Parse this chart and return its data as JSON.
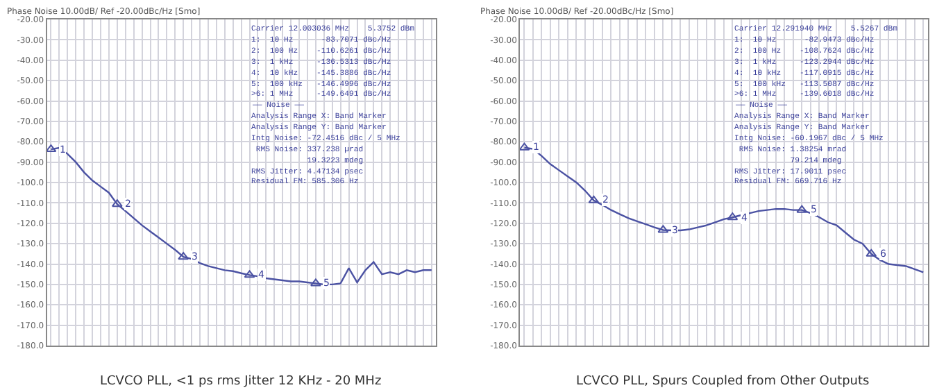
{
  "chart_data": [
    {
      "type": "line",
      "title": "Phase Noise 10.00dB/ Ref -20.00dBc/Hz [Smo]",
      "categories": [
        null,
        null,
        null,
        null,
        null,
        null,
        null,
        null,
        null,
        null,
        null,
        null,
        null,
        null,
        null,
        null,
        null,
        null,
        null,
        null,
        null,
        null,
        null,
        null,
        null,
        null,
        null,
        null,
        null,
        null,
        null,
        null,
        null,
        null,
        null,
        null,
        null,
        null,
        null,
        null,
        null,
        null,
        null,
        null,
        null,
        null,
        null
      ],
      "ylim": [
        -180,
        -20
      ],
      "yticks": [
        {
          "value": -20,
          "label": "-20.00"
        },
        {
          "value": -30,
          "label": "-30.00"
        },
        {
          "value": -40,
          "label": "-40.00"
        },
        {
          "value": -50,
          "label": "-50.00"
        },
        {
          "value": -60,
          "label": "-60.00"
        },
        {
          "value": -70,
          "label": "-70.00"
        },
        {
          "value": -80,
          "label": "-80.00"
        },
        {
          "value": -90,
          "label": "-90.00"
        },
        {
          "value": -100,
          "label": "-100.0"
        },
        {
          "value": -110,
          "label": "-110.0"
        },
        {
          "value": -120,
          "label": "-120.0"
        },
        {
          "value": -130,
          "label": "-130.0"
        },
        {
          "value": -140,
          "label": "-140.0"
        },
        {
          "value": -150,
          "label": "-150.0"
        },
        {
          "value": -160,
          "label": "-160.0"
        },
        {
          "value": -170,
          "label": "-170.0"
        },
        {
          "value": -180,
          "label": "-180.0"
        }
      ],
      "grid": true,
      "series": [
        {
          "color": "#4b52a3",
          "values": [
            -83.7,
            -83,
            -86,
            -90,
            -95,
            -99,
            -102,
            -105,
            -110.6,
            -114,
            -117.5,
            -121,
            -124,
            -127,
            -130,
            -133,
            -136.5,
            -137.5,
            -139.5,
            -141,
            -142,
            -143,
            -143.5,
            -144.5,
            -145.4,
            -146,
            -147,
            -147.5,
            -148,
            -148.5,
            -148.5,
            -149,
            -149.5,
            -150,
            -150,
            -149.5,
            -142,
            -149,
            -143,
            -139,
            -145,
            -144,
            -145,
            -143,
            -144,
            -143,
            -143
          ]
        },
        {
          "type": "scatter",
          "marker": "triangle",
          "color": "#4b52a3",
          "values": [
            -83.7,
            null,
            null,
            null,
            null,
            null,
            null,
            null,
            -110.6,
            null,
            null,
            null,
            null,
            null,
            null,
            null,
            -136.5,
            null,
            null,
            null,
            null,
            null,
            null,
            null,
            -145.4,
            null,
            null,
            null,
            null,
            null,
            null,
            null,
            -149.5,
            null,
            null,
            null,
            null,
            null,
            null,
            null,
            null,
            null,
            null,
            null,
            null,
            null,
            null
          ]
        }
      ],
      "annotations": [
        {
          "text": "1",
          "y": -83.7
        },
        {
          "text": "2",
          "y": -110.6
        },
        {
          "text": "3",
          "y": -136.5
        },
        {
          "text": "4",
          "y": -145.4
        },
        {
          "text": "5",
          "y": -149.5
        },
        "Carrier 12.003036 MHz    5.3752 dBm",
        "1:  10 Hz      -83.7071 dBc/Hz",
        "2:  100 Hz    -110.6261 dBc/Hz",
        "3:  1 kHz     -136.5313 dBc/Hz",
        "4:  10 kHz    -145.3886 dBc/Hz",
        "5:  100 kHz   -146.4996 dBc/Hz",
        ">6: 1 MHz     -149.6491 dBc/Hz",
        "—— Noise ——",
        "Analysis Range X: Band Marker",
        "Analysis Range Y: Band Marker",
        "Intg Noise: -72.4516 dBc / 5 MHz",
        " RMS Noise: 337.238 µrad",
        "            19.3223 mdeg",
        "RMS Jitter: 4.47134 psec",
        "Residual FM: 585.306 Hz",
        "LCVCO PLL, <1 ps rms Jitter 12 KHz - 20 MHz"
      ]
    },
    {
      "type": "line",
      "title": "Phase Noise 10.00dB/ Ref -20.00dBc/Hz [Smo]",
      "categories": [
        null,
        null,
        null,
        null,
        null,
        null,
        null,
        null,
        null,
        null,
        null,
        null,
        null,
        null,
        null,
        null,
        null,
        null,
        null,
        null,
        null,
        null,
        null,
        null,
        null,
        null,
        null,
        null,
        null,
        null,
        null,
        null,
        null,
        null,
        null,
        null,
        null,
        null,
        null,
        null,
        null,
        null,
        null,
        null,
        null,
        null,
        null
      ],
      "ylim": [
        -180,
        -20
      ],
      "yticks": [
        {
          "value": -20,
          "label": "-20.00"
        },
        {
          "value": -30,
          "label": "-30.00"
        },
        {
          "value": -40,
          "label": "-40.00"
        },
        {
          "value": -50,
          "label": "-50.00"
        },
        {
          "value": -60,
          "label": "-60.00"
        },
        {
          "value": -70,
          "label": "-70.00"
        },
        {
          "value": -80,
          "label": "-80.00"
        },
        {
          "value": -90,
          "label": "-90.00"
        },
        {
          "value": -100,
          "label": "-100.0"
        },
        {
          "value": -110,
          "label": "-110.0"
        },
        {
          "value": -120,
          "label": "-120.0"
        },
        {
          "value": -130,
          "label": "-130.0"
        },
        {
          "value": -140,
          "label": "-140.0"
        },
        {
          "value": -150,
          "label": "-150.0"
        },
        {
          "value": -160,
          "label": "-160.0"
        },
        {
          "value": -170,
          "label": "-170.0"
        },
        {
          "value": -180,
          "label": "-180.0"
        }
      ],
      "grid": true,
      "series": [
        {
          "color": "#4b52a3",
          "values": [
            -82.9,
            -83.5,
            -87,
            -91,
            -94,
            -97,
            -100,
            -104,
            -108.8,
            -111,
            -113.5,
            -115.5,
            -117.5,
            -119,
            -120.5,
            -122,
            -123.3,
            -123.5,
            -123.5,
            -123,
            -122,
            -121,
            -119.5,
            -118,
            -117.1,
            -116,
            -115,
            -114,
            -113.5,
            -113,
            -113,
            -113.5,
            -113.5,
            -115,
            -117,
            -119.5,
            -121,
            -124.5,
            -128,
            -130,
            -135,
            -138,
            -140,
            -140.5,
            -141,
            -142.5,
            -144
          ]
        },
        {
          "type": "scatter",
          "marker": "triangle",
          "color": "#4b52a3",
          "values": [
            -82.9,
            null,
            null,
            null,
            null,
            null,
            null,
            null,
            -108.8,
            null,
            null,
            null,
            null,
            null,
            null,
            null,
            -123.3,
            null,
            null,
            null,
            null,
            null,
            null,
            null,
            -117.1,
            null,
            null,
            null,
            null,
            null,
            null,
            null,
            -113.5,
            null,
            null,
            null,
            null,
            null,
            null,
            null,
            -135,
            null,
            null,
            null,
            null,
            null,
            null
          ]
        }
      ],
      "annotations": [
        {
          "text": "1",
          "y": -82.9
        },
        {
          "text": "2",
          "y": -108.8
        },
        {
          "text": "3",
          "y": -123.3
        },
        {
          "text": "4",
          "y": -117.1
        },
        {
          "text": "5",
          "y": -113.5
        },
        {
          "text": "6",
          "y": -135
        },
        "Carrier 12.291940 MHz    5.5267 dBm",
        "1:  10 Hz      -82.9473 dBc/Hz",
        "2:  100 Hz    -108.7624 dBc/Hz",
        "3:  1 kHz     -123.2944 dBc/Hz",
        "4:  10 kHz    -117.0915 dBc/Hz",
        "5:  100 kHz   -113.5087 dBc/Hz",
        ">6: 1 MHz     -139.6018 dBc/Hz",
        "—— Noise ——",
        "Analysis Range X: Band Marker",
        "Analysis Range Y: Band Marker",
        "Intg Noise: -60.1967 dBc / 5 MHz",
        " RMS Noise: 1.38254 mrad",
        "            79.214 mdeg",
        "RMS Jitter: 17.9011 psec",
        "Residual FM: 669.716 Hz",
        "LCVCO PLL, Spurs Coupled from Other Outputs"
      ]
    }
  ]
}
